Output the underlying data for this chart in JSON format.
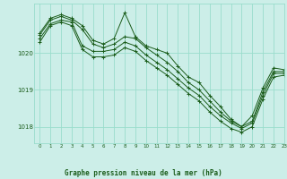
{
  "title": "Graphe pression niveau de la mer (hPa)",
  "bg_color": "#cceee8",
  "grid_color": "#99ddcc",
  "line_color": "#1a5c1a",
  "marker": "+",
  "xlim": [
    -0.5,
    23
  ],
  "ylim": [
    1017.55,
    1021.35
  ],
  "yticks": [
    1018,
    1019,
    1020
  ],
  "xticks": [
    0,
    1,
    2,
    3,
    4,
    5,
    6,
    7,
    8,
    9,
    10,
    11,
    12,
    13,
    14,
    15,
    16,
    17,
    18,
    19,
    20,
    21,
    22,
    23
  ],
  "series": [
    [
      1020.55,
      1020.95,
      1021.05,
      1020.95,
      1020.75,
      1020.35,
      1020.25,
      1020.4,
      1021.1,
      1020.45,
      1020.2,
      1020.1,
      1020.0,
      1019.65,
      1019.35,
      1019.2,
      1018.85,
      1018.55,
      1018.2,
      1018.0,
      1018.3,
      1019.05,
      1019.6,
      1019.55
    ],
    [
      1020.5,
      1020.9,
      1021.0,
      1020.9,
      1020.65,
      1020.25,
      1020.15,
      1020.25,
      1020.45,
      1020.4,
      1020.15,
      1019.95,
      1019.75,
      1019.5,
      1019.2,
      1019.0,
      1018.7,
      1018.4,
      1018.15,
      1018.0,
      1018.15,
      1018.95,
      1019.5,
      1019.5
    ],
    [
      1020.4,
      1020.8,
      1020.9,
      1020.85,
      1020.2,
      1020.05,
      1020.05,
      1020.1,
      1020.3,
      1020.2,
      1019.95,
      1019.75,
      1019.55,
      1019.3,
      1019.05,
      1018.85,
      1018.55,
      1018.3,
      1018.1,
      1017.95,
      1018.1,
      1018.85,
      1019.45,
      1019.45
    ],
    [
      1020.3,
      1020.75,
      1020.85,
      1020.75,
      1020.1,
      1019.9,
      1019.9,
      1019.95,
      1020.15,
      1020.05,
      1019.8,
      1019.6,
      1019.4,
      1019.15,
      1018.9,
      1018.7,
      1018.4,
      1018.15,
      1017.95,
      1017.85,
      1018.0,
      1018.75,
      1019.35,
      1019.4
    ]
  ]
}
